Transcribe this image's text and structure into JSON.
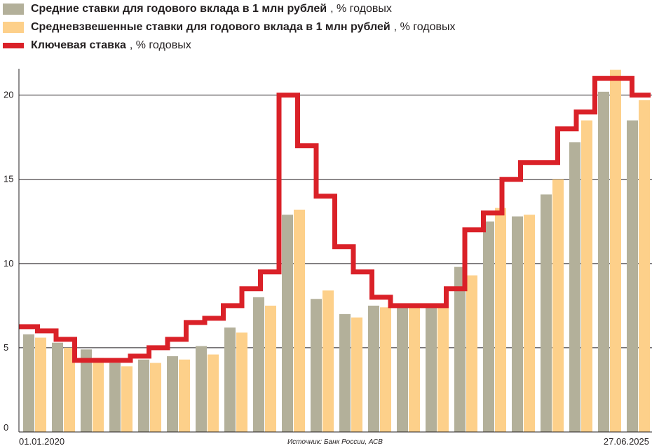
{
  "chart_data": {
    "type": "bar",
    "series": [
      {
        "name": "Средние ставки для годового вклада в 1 млн рублей",
        "color": "#b3b09a",
        "values": [
          5.8,
          5.3,
          4.9,
          4.1,
          4.3,
          4.5,
          5.1,
          6.2,
          8.0,
          12.9,
          7.9,
          7.0,
          7.5,
          7.5,
          7.5,
          9.8,
          12.5,
          12.8,
          14.1,
          17.2,
          20.2,
          18.5
        ]
      },
      {
        "name": "Средневзвешенные ставки для годового вклада в 1 млн рублей",
        "color": "#fdd08a",
        "values": [
          5.6,
          5.0,
          4.4,
          3.9,
          4.1,
          4.3,
          4.6,
          5.9,
          7.5,
          13.2,
          8.4,
          6.8,
          7.4,
          7.4,
          7.6,
          9.3,
          13.3,
          12.9,
          15.0,
          18.5,
          21.5,
          19.7
        ]
      },
      {
        "name": "Ключевая ставка",
        "color": "#da2128",
        "type": "step-line",
        "values": [
          6.25,
          6.0,
          5.5,
          4.25,
          4.25,
          4.25,
          4.5,
          5.0,
          5.5,
          6.5,
          6.75,
          7.5,
          8.5,
          9.5,
          20.0,
          17.0,
          14.0,
          11.0,
          9.5,
          8.0,
          7.5,
          7.5,
          7.5,
          8.5,
          12.0,
          13.0,
          15.0,
          16.0,
          16.0,
          18.0,
          19.0,
          21.0,
          21.0,
          20.0
        ]
      }
    ],
    "legend_units": "% годовых",
    "yticks": [
      0,
      5,
      10,
      15,
      20
    ],
    "ylim": [
      0,
      21.9
    ],
    "x_start_label": "01.01.2020",
    "x_end_label": "27.06.2025",
    "source": "Источник: Банк России, АСВ",
    "grid": true
  }
}
